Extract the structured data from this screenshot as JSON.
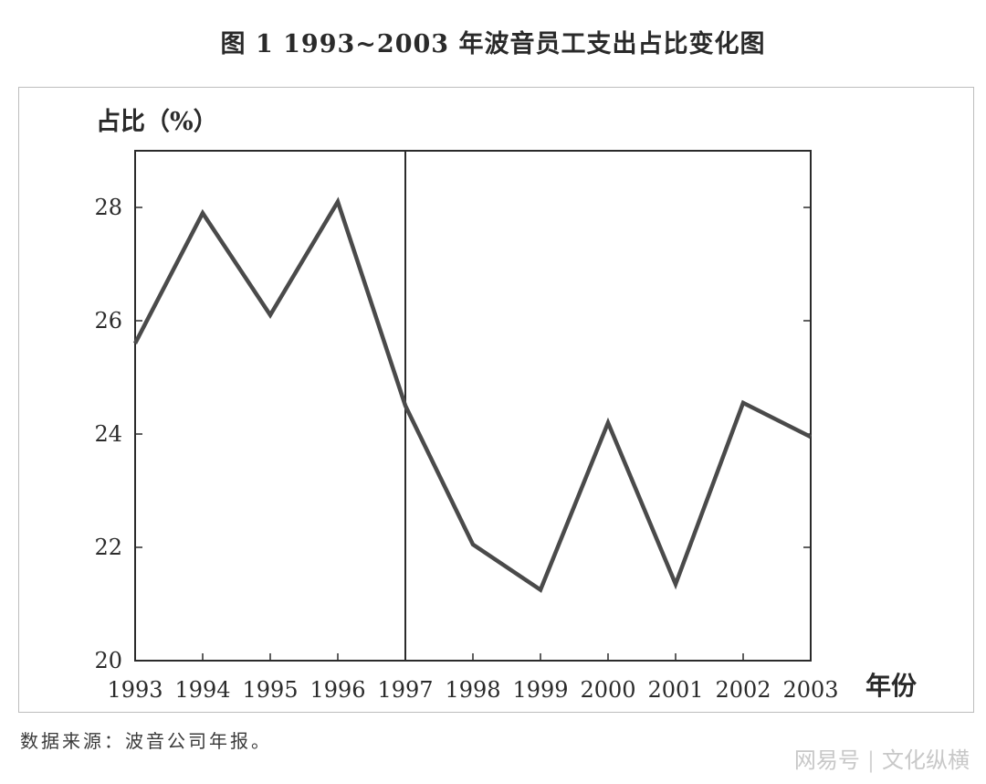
{
  "chart_data": {
    "type": "line",
    "title": "图 1  1993~2003 年波音员工支出占比变化图",
    "ylabel": "占比（%）",
    "xlabel": "年份",
    "categories": [
      "1993",
      "1994",
      "1995",
      "1996",
      "1997",
      "1998",
      "1999",
      "2000",
      "2001",
      "2002",
      "2003"
    ],
    "series": [
      {
        "values": [
          25.6,
          27.9,
          26.1,
          28.1,
          24.5,
          22.05,
          21.25,
          24.2,
          21.35,
          24.55,
          23.95
        ]
      }
    ],
    "ylim": [
      20,
      29
    ],
    "yticks": [
      "20",
      "22",
      "24",
      "26",
      "28"
    ],
    "vertical_marker": "1997",
    "grid": false,
    "line_color": "#4a4a4a"
  },
  "source_text": "数据来源：波音公司年报。",
  "watermark": {
    "brand": "网易号",
    "separator": "|",
    "account": "文化纵横"
  }
}
